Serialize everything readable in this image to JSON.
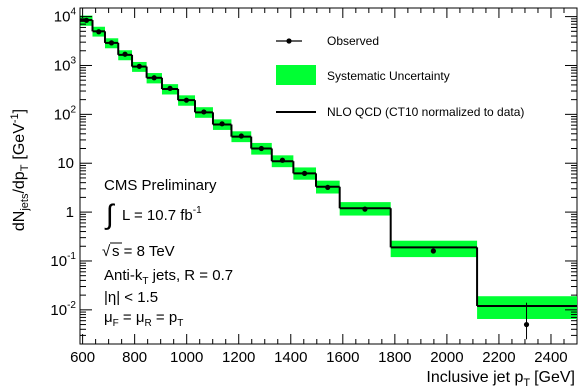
{
  "chart_data": {
    "type": "step-histogram",
    "xlabel": "Inclusive jet p",
    "xlabel_sub": "T",
    "xlabel_unit": "[GeV]",
    "ylabel_main": "dN",
    "ylabel_sub1": "jets",
    "ylabel_mid": "/dp",
    "ylabel_sub2": "T",
    "ylabel_unit": "[GeV",
    "ylabel_unit_sup": "-1",
    "ylabel_unit_close": "]",
    "xlim": [
      590,
      2500
    ],
    "ylim": [
      0.002,
      15000
    ],
    "yscale": "log",
    "x_ticks": [
      600,
      800,
      1000,
      1200,
      1400,
      1600,
      1800,
      2000,
      2200,
      2400
    ],
    "y_ticks": [
      {
        "value": 0.01,
        "base": "10",
        "exp": "-2"
      },
      {
        "value": 0.1,
        "base": "10",
        "exp": "-1"
      },
      {
        "value": 1,
        "base": "1",
        "exp": ""
      },
      {
        "value": 10,
        "base": "10",
        "exp": ""
      },
      {
        "value": 100,
        "base": "10",
        "exp": "2"
      },
      {
        "value": 1000,
        "base": "10",
        "exp": "3"
      },
      {
        "value": 10000,
        "base": "10",
        "exp": "4"
      }
    ],
    "bin_edges": [
      592,
      638,
      686,
      737,
      790,
      846,
      905,
      967,
      1032,
      1101,
      1172,
      1248,
      1327,
      1410,
      1497,
      1588,
      1784,
      2116,
      2500
    ],
    "nlo_values": [
      8500,
      5000,
      2900,
      1650,
      950,
      560,
      330,
      195,
      110,
      62,
      35,
      20,
      11,
      6.2,
      3.3,
      1.2,
      0.19,
      0.012
    ],
    "syst_low": [
      6500,
      3900,
      2250,
      1280,
      740,
      430,
      255,
      150,
      85,
      48,
      27,
      15,
      8.3,
      4.6,
      2.4,
      0.85,
      0.12,
      0.0065
    ],
    "syst_high": [
      10500,
      6200,
      3600,
      2050,
      1180,
      700,
      415,
      245,
      140,
      79,
      45,
      26,
      14.5,
      8.2,
      4.4,
      1.6,
      0.26,
      0.019
    ],
    "observed_x": [
      615,
      662,
      711,
      763,
      818,
      875,
      936,
      999,
      1066,
      1136,
      1210,
      1287,
      1368,
      1453,
      1542,
      1685,
      1948,
      2306
    ],
    "observed_y": [
      8400,
      4900,
      2900,
      1700,
      960,
      560,
      340,
      195,
      112,
      64,
      36,
      20,
      11.5,
      6.2,
      3.2,
      1.15,
      0.16,
      0.005
    ],
    "observed_err_low": [
      0,
      0,
      0,
      0,
      0,
      0,
      0,
      0,
      0,
      0,
      0,
      0,
      0,
      0,
      0,
      0,
      0,
      0.0025
    ],
    "observed_err_high": [
      0,
      0,
      0,
      0,
      0,
      0,
      0,
      0,
      0,
      0,
      0,
      0,
      0,
      0,
      0,
      0,
      0.02,
      0.009
    ],
    "colors": {
      "syst": "#00ff33",
      "line": "#000000",
      "marker": "#000000"
    },
    "legend": {
      "position": "top-right",
      "entries": [
        {
          "kind": "marker",
          "label": "Observed"
        },
        {
          "kind": "band",
          "label": "Systematic Uncertainty"
        },
        {
          "kind": "line",
          "label": "NLO QCD (CT10 normalized to data)"
        }
      ]
    },
    "annotations": {
      "experiment": "CMS Preliminary",
      "lumi_prefix": "L = 10.7 fb",
      "lumi_sup": "-1",
      "energy": "s = 8 TeV",
      "algo_prefix": "Anti-k",
      "algo_sub": "T",
      "algo_suffix": " jets, R = 0.7",
      "eta": "|η| < 1.5",
      "scale": "μ",
      "scale_sub1": "F",
      "scale_mid": " = μ",
      "scale_sub2": "R",
      "scale_end": " = p",
      "scale_sub3": "T"
    }
  }
}
